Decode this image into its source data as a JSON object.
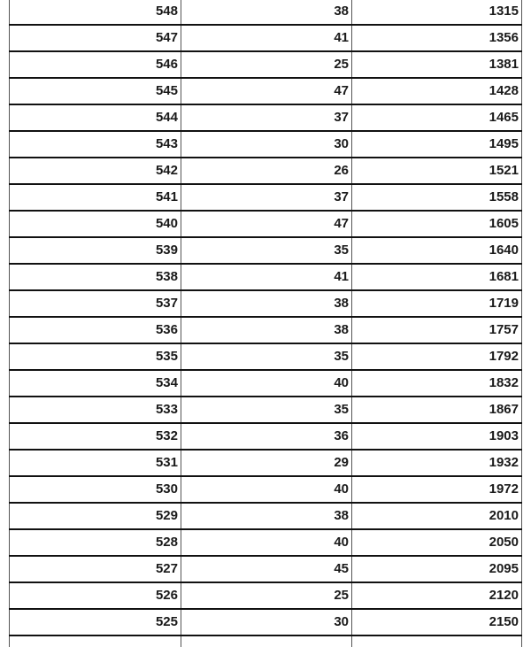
{
  "table": {
    "rows": [
      [
        "548",
        "38",
        "1315"
      ],
      [
        "547",
        "41",
        "1356"
      ],
      [
        "546",
        "25",
        "1381"
      ],
      [
        "545",
        "47",
        "1428"
      ],
      [
        "544",
        "37",
        "1465"
      ],
      [
        "543",
        "30",
        "1495"
      ],
      [
        "542",
        "26",
        "1521"
      ],
      [
        "541",
        "37",
        "1558"
      ],
      [
        "540",
        "47",
        "1605"
      ],
      [
        "539",
        "35",
        "1640"
      ],
      [
        "538",
        "41",
        "1681"
      ],
      [
        "537",
        "38",
        "1719"
      ],
      [
        "536",
        "38",
        "1757"
      ],
      [
        "535",
        "35",
        "1792"
      ],
      [
        "534",
        "40",
        "1832"
      ],
      [
        "533",
        "35",
        "1867"
      ],
      [
        "532",
        "36",
        "1903"
      ],
      [
        "531",
        "29",
        "1932"
      ],
      [
        "530",
        "40",
        "1972"
      ],
      [
        "529",
        "38",
        "2010"
      ],
      [
        "528",
        "40",
        "2050"
      ],
      [
        "527",
        "45",
        "2095"
      ],
      [
        "526",
        "25",
        "2120"
      ],
      [
        "525",
        "30",
        "2150"
      ]
    ]
  }
}
